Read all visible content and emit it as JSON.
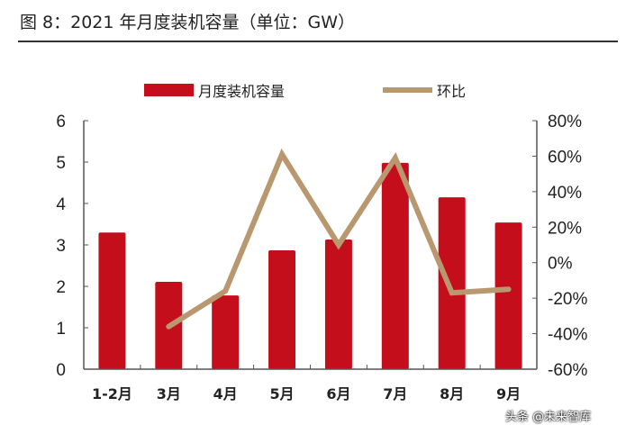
{
  "title": "图 8：2021 年月度装机容量（单位：GW）",
  "watermark": "头条 @未来智库",
  "chart_data": {
    "type": "bar+line",
    "title": "2021 年月度装机容量（单位：GW）",
    "categories": [
      "1-2月",
      "3月",
      "4月",
      "5月",
      "6月",
      "7月",
      "8月",
      "9月"
    ],
    "series": [
      {
        "name": "月度装机容量",
        "type": "bar",
        "axis": "left",
        "color": "#C40E1C",
        "values": [
          3.3,
          2.11,
          1.78,
          2.87,
          3.13,
          4.98,
          4.15,
          3.54
        ]
      },
      {
        "name": "环比",
        "type": "line",
        "axis": "right",
        "color": "#B9976F",
        "values": [
          null,
          -36,
          -16,
          61,
          10,
          59,
          -17,
          -15
        ]
      }
    ],
    "ylim": [
      0,
      6
    ],
    "yticks": [
      "0",
      "1",
      "2",
      "3",
      "4",
      "5",
      "6"
    ],
    "y2lim": [
      -60,
      80
    ],
    "y2ticks": [
      "-60%",
      "-40%",
      "-20%",
      "0%",
      "20%",
      "40%",
      "60%",
      "80%"
    ],
    "grid": false,
    "legend": "top"
  }
}
